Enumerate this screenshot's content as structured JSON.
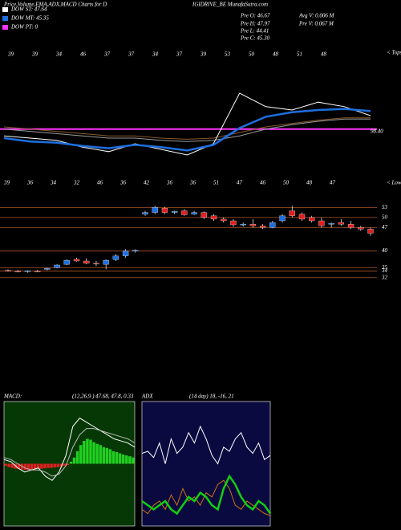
{
  "header": {
    "title_left": "Price,Volume,EMA,ADX,MACD Charts for D",
    "title_right": "IGIDRIVE_BE MunafaSutra.com",
    "legend": [
      {
        "label": "DOW ST: 47.64",
        "color": "#ffffff"
      },
      {
        "label": "DOW MT: 45.35",
        "color": "#1e6fe0"
      },
      {
        "label": "DOW PT: 0",
        "color": "#ff33ff"
      }
    ],
    "stats": [
      "Pre  O: 46.67",
      "Pre  H: 47.97",
      "Pre  L: 44.41",
      "Pre  C: 45.30",
      "Avg  V: 0.006  M",
      "Pre  V: 0.067 M"
    ]
  },
  "chart_data": [
    {
      "type": "line",
      "tops_label": "< Tops",
      "lows_label": "< Lows",
      "level_label": "98.40",
      "level": 28,
      "level_color": "#ff33ff",
      "ylim": [
        0,
        100
      ],
      "tops": [
        "39",
        "39",
        "34",
        "46",
        "37",
        "37",
        "34",
        "37",
        "39",
        "53",
        "50",
        "48",
        "51",
        "48"
      ],
      "lows": [
        "39",
        "36",
        "34",
        "32",
        "46",
        "36",
        "42",
        "36",
        "36",
        "51",
        "47",
        "46",
        "50",
        "48",
        "47"
      ],
      "series": [
        {
          "color": "#8a5a2a",
          "values": [
            30,
            28,
            26,
            24,
            22,
            22,
            20,
            19,
            20,
            25,
            30,
            33,
            36,
            38,
            38
          ]
        },
        {
          "color": "#9a9a9a",
          "values": [
            28,
            26,
            24,
            22,
            20,
            20,
            18,
            17,
            18,
            22,
            28,
            32,
            35,
            37,
            37
          ]
        },
        {
          "color": "#ffffff",
          "values": [
            22,
            20,
            18,
            12,
            8,
            15,
            10,
            5,
            15,
            60,
            48,
            45,
            52,
            48,
            40
          ]
        },
        {
          "color": "#1e6fe0",
          "values": [
            20,
            17,
            16,
            13,
            11,
            14,
            12,
            9,
            14,
            29,
            39,
            43,
            45,
            46,
            44
          ]
        }
      ]
    },
    {
      "type": "candlestick",
      "ylim": [
        31,
        55
      ],
      "yticks": [
        53,
        50,
        47,
        40,
        35,
        34,
        32
      ],
      "up_color": "#1e6fe0",
      "down_color": "#e02020",
      "open": [
        34.2,
        34,
        33.8,
        34,
        34.5,
        35,
        36,
        37.5,
        37,
        36.3,
        36,
        37.4,
        38.5,
        40,
        51,
        51.5,
        52.8,
        51.5,
        52,
        51,
        51.5,
        50.5,
        49.5,
        49,
        48,
        48,
        47.5,
        47,
        49,
        52,
        51,
        50,
        49,
        48,
        48.5,
        48,
        47,
        46.5
      ],
      "high": [
        34.5,
        34.3,
        34.2,
        34.3,
        35,
        36,
        37.5,
        38,
        37.8,
        37,
        37.5,
        39,
        40.5,
        40.5,
        52,
        53.5,
        53.2,
        52,
        52.5,
        52,
        51.8,
        51,
        50,
        49.5,
        48.5,
        49.5,
        48,
        49,
        51,
        53.5,
        51.5,
        50.5,
        50,
        48.5,
        49.5,
        49,
        47.5,
        47
      ],
      "low": [
        33.8,
        33.6,
        33.5,
        33.7,
        34.2,
        34.8,
        35.8,
        36.8,
        36,
        35.5,
        34.5,
        37,
        38,
        39.5,
        50.5,
        51,
        51,
        51,
        50.5,
        50.8,
        49.5,
        49,
        48.5,
        47.2,
        47.3,
        47,
        46.5,
        46.8,
        48.5,
        50,
        49,
        48.5,
        47,
        47,
        47.5,
        46.5,
        46,
        44.5
      ],
      "close": [
        34,
        33.8,
        34.1,
        33.9,
        34.8,
        35.8,
        37.2,
        37,
        36.3,
        36.2,
        37.2,
        38.5,
        40,
        40.2,
        51.5,
        53,
        51.5,
        51.8,
        50.8,
        51.5,
        50,
        49.5,
        49,
        47.8,
        48,
        47.5,
        47,
        48.5,
        50.5,
        50.5,
        49.5,
        49,
        47.5,
        48.2,
        48,
        47,
        46.5,
        45.3
      ]
    },
    {
      "type": "macd",
      "label": "MACD:",
      "params": "(12,26,9 ) 47.68, 47.8, 0.33",
      "ylim": [
        -1.5,
        1.5
      ],
      "histogram": [
        -0.05,
        -0.08,
        -0.1,
        -0.12,
        -0.13,
        -0.14,
        -0.15,
        -0.15,
        -0.14,
        -0.13,
        -0.12,
        -0.12,
        -0.11,
        -0.1,
        -0.1,
        -0.09,
        -0.08,
        -0.07,
        -0.05,
        -0.03,
        0.05,
        0.15,
        0.3,
        0.45,
        0.55,
        0.6,
        0.58,
        0.52,
        0.48,
        0.45,
        0.4,
        0.38,
        0.35,
        0.3,
        0.28,
        0.25,
        0.22,
        0.2,
        0.18,
        0.15
      ],
      "series": [
        {
          "color": "#ffffff",
          "values": [
            0.1,
            0.05,
            -0.1,
            -0.2,
            -0.15,
            -0.1,
            -0.3,
            -0.4,
            -0.2,
            0.2,
            0.9,
            1.1,
            1.0,
            0.9,
            0.8,
            0.7,
            0.6,
            0.55,
            0.5,
            0.4
          ]
        },
        {
          "color": "#bbbbbb",
          "values": [
            0.15,
            0.1,
            0,
            -0.1,
            -0.15,
            -0.15,
            -0.2,
            -0.3,
            -0.25,
            -0.05,
            0.4,
            0.7,
            0.85,
            0.85,
            0.8,
            0.75,
            0.7,
            0.65,
            0.6,
            0.5
          ]
        }
      ]
    },
    {
      "type": "adx",
      "label": "ADX",
      "params": "(14 day) 18, -16, 21",
      "ylim": [
        0,
        60
      ],
      "series": [
        {
          "color": "#ffffff",
          "values": [
            35,
            36,
            33,
            40,
            30,
            42,
            35,
            38,
            45,
            40,
            48,
            42,
            34,
            30,
            38,
            36,
            42,
            45,
            38,
            35,
            40,
            32,
            34
          ]
        },
        {
          "color": "#d07010",
          "values": [
            8,
            6,
            10,
            12,
            8,
            15,
            10,
            18,
            12,
            14,
            10,
            16,
            14,
            20,
            22,
            18,
            10,
            8,
            12,
            10,
            8,
            6,
            5
          ]
        },
        {
          "color": "#10d010",
          "values": [
            12,
            10,
            8,
            10,
            12,
            8,
            6,
            10,
            14,
            12,
            16,
            14,
            10,
            8,
            18,
            24,
            20,
            14,
            10,
            8,
            12,
            10,
            6
          ]
        }
      ]
    }
  ]
}
